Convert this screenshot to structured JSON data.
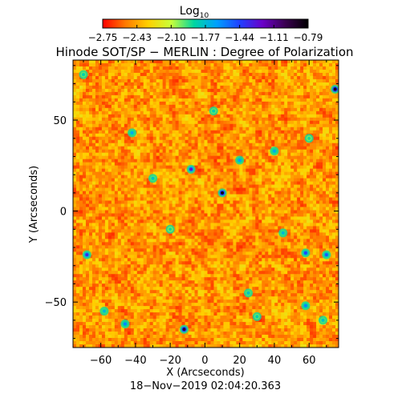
{
  "colorbar": {
    "label_main": "Log",
    "label_sub": "10",
    "ticks": [
      "−2.75",
      "−2.43",
      "−2.10",
      "−1.77",
      "−1.44",
      "−1.11",
      "−0.79"
    ],
    "range": [
      -2.75,
      -0.79
    ],
    "colormap": [
      "#ff0000",
      "#ff7a00",
      "#ffd000",
      "#c8ff3a",
      "#00d6a0",
      "#00a0ff",
      "#2040ff",
      "#6a00c8",
      "#3a0050",
      "#000000"
    ]
  },
  "title": "Hinode SOT/SP − MERLIN : Degree of Polarization",
  "timestamp": "18−Nov−2019 02:04:20.363",
  "chart_data": {
    "type": "heatmap",
    "title": "Hinode SOT/SP − MERLIN : Degree of Polarization",
    "xlabel": "X (Arcseconds)",
    "ylabel": "Y (Arcseconds)",
    "xlim": [
      -76,
      77
    ],
    "ylim": [
      -75,
      83
    ],
    "xticks": [
      -60,
      -40,
      -20,
      0,
      20,
      40,
      60
    ],
    "yticks": [
      -50,
      0,
      50
    ],
    "xtick_labels": [
      "−60",
      "−40",
      "−20",
      "0",
      "20",
      "40",
      "60"
    ],
    "ytick_labels": [
      "−50",
      "0",
      "50"
    ],
    "value_label": "Log10 degree of polarization",
    "value_range": [
      -2.75,
      -0.79
    ],
    "typical_value": -2.55,
    "features": [
      {
        "x": 75,
        "y": 67,
        "value": -0.85
      },
      {
        "x": 10,
        "y": 10,
        "value": -0.85
      },
      {
        "x": -12,
        "y": -65,
        "value": -0.95
      },
      {
        "x": -8,
        "y": 23,
        "value": -1.3
      },
      {
        "x": -68,
        "y": -24,
        "value": -1.35
      },
      {
        "x": 58,
        "y": -23,
        "value": -1.45
      },
      {
        "x": 70,
        "y": -24,
        "value": -1.5
      },
      {
        "x": 58,
        "y": -52,
        "value": -1.6
      },
      {
        "x": -46,
        "y": -62,
        "value": -1.6
      },
      {
        "x": -42,
        "y": 43,
        "value": -1.7
      },
      {
        "x": 20,
        "y": 28,
        "value": -1.65
      },
      {
        "x": 40,
        "y": 33,
        "value": -1.7
      },
      {
        "x": -58,
        "y": -55,
        "value": -1.75
      },
      {
        "x": 45,
        "y": -12,
        "value": -1.75
      },
      {
        "x": -30,
        "y": 18,
        "value": -1.8
      },
      {
        "x": 25,
        "y": -45,
        "value": -1.8
      },
      {
        "x": 68,
        "y": -60,
        "value": -1.8
      },
      {
        "x": -70,
        "y": 75,
        "value": -1.85
      },
      {
        "x": 5,
        "y": 55,
        "value": -1.85
      },
      {
        "x": -20,
        "y": -10,
        "value": -1.9
      },
      {
        "x": 60,
        "y": 40,
        "value": -1.9
      },
      {
        "x": 30,
        "y": -58,
        "value": -1.85
      }
    ]
  }
}
